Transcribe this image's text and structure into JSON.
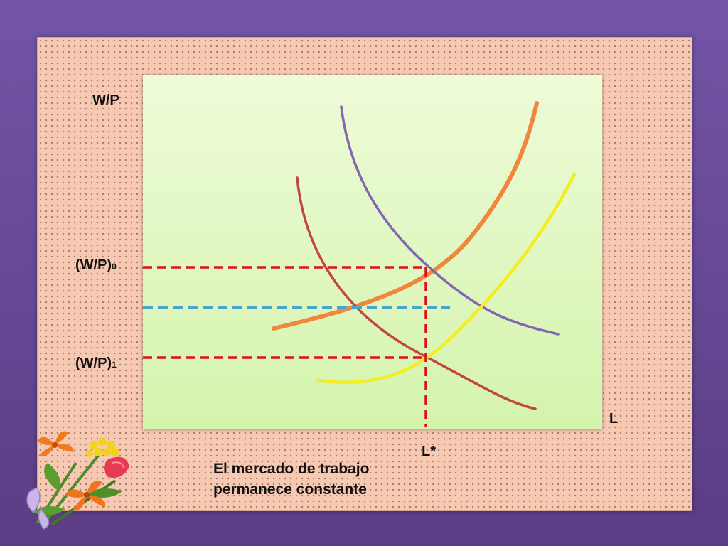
{
  "axis": {
    "y_label": "W/P",
    "x_label": "L",
    "x_equilibrium_label": "L*",
    "wage_0": {
      "base": "(W/P)",
      "subscript": "0"
    },
    "wage_1": {
      "base": "(W/P)",
      "subscript": "1"
    }
  },
  "caption": {
    "line1": "El mercado de trabajo",
    "line2": "permanece constante"
  },
  "colors": {
    "background": "#5a3d85",
    "panel": "#f7c9b2",
    "plot_area": "#e3f8c6",
    "orange_curve": "#f0873c",
    "purple_curve": "#8466b3",
    "brown_curve": "#c2473f",
    "yellow_curve": "#f2ee22",
    "red_dashed_guides": "#e0101a",
    "blue_dashed_line": "#4aa6c8"
  },
  "decoration": {
    "clipart": "flower-bouquet"
  }
}
